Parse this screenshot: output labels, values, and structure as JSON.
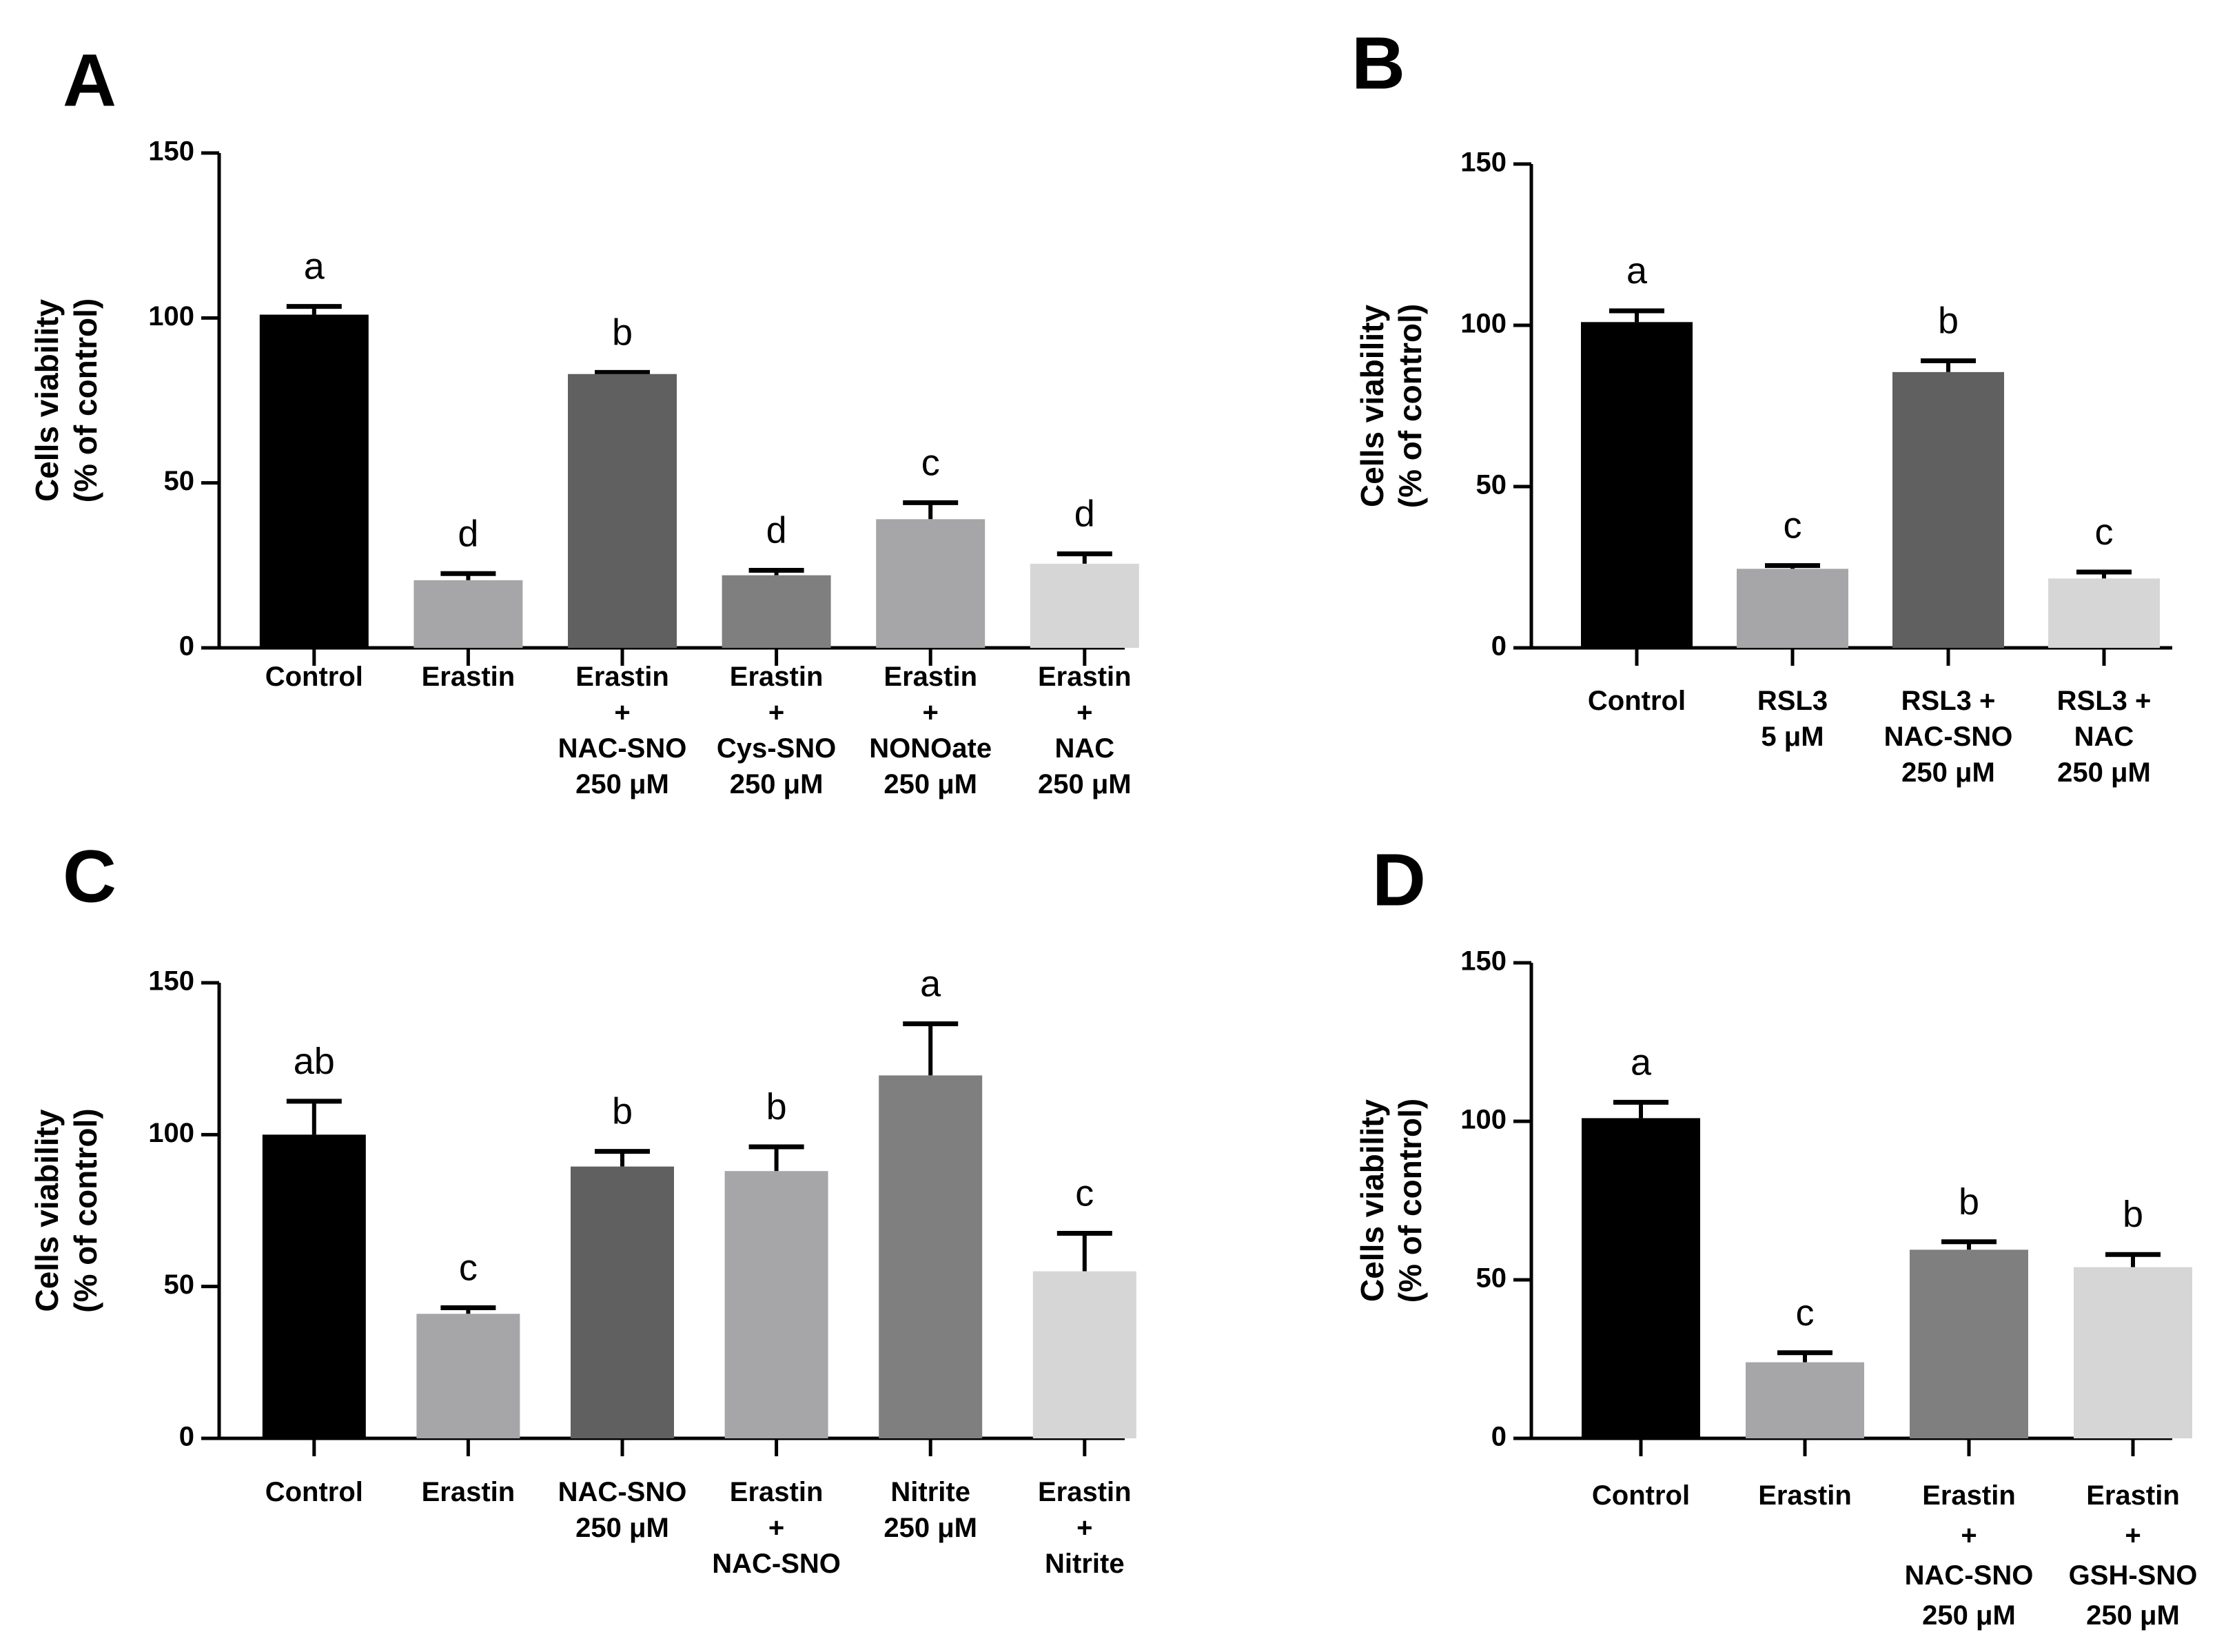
{
  "chart_data": [
    {
      "panel": "A",
      "type": "bar",
      "ylabel": [
        "Cells viability",
        "(% of control)"
      ],
      "ylim": [
        0,
        150
      ],
      "yticks": [
        "0",
        "50",
        "100",
        "150"
      ],
      "categories": [
        [
          "Control"
        ],
        [
          "Erastin"
        ],
        [
          "Erastin",
          "+",
          "NAC-SNO",
          "250 μM"
        ],
        [
          "Erastin",
          "+",
          "Cys-SNO",
          "250 μM"
        ],
        [
          "Erastin",
          "+",
          "NONOate",
          "250 μM"
        ],
        [
          "Erastin",
          "+",
          "NAC",
          "250 μM"
        ]
      ],
      "values": [
        101,
        20.5,
        83,
        22,
        39,
        25.5
      ],
      "errors": [
        2.5,
        2,
        0.5,
        1.5,
        5,
        3
      ],
      "significance": [
        "a",
        "d",
        "b",
        "d",
        "c",
        "d"
      ],
      "colors": [
        "#000000",
        "#a6a6a8",
        "#606060",
        "#7f7f7f",
        "#a6a6a8",
        "#d6d6d6"
      ]
    },
    {
      "panel": "B",
      "type": "bar",
      "ylabel": [
        "Cells viability",
        "(% of control)"
      ],
      "ylim": [
        0,
        150
      ],
      "yticks": [
        "0",
        "50",
        "100",
        "150"
      ],
      "categories": [
        [
          "Control"
        ],
        [
          "RSL3",
          "5 μM"
        ],
        [
          "RSL3 +",
          "NAC-SNO",
          "250 μM"
        ],
        [
          "RSL3 +",
          "NAC",
          "250 μM"
        ]
      ],
      "values": [
        101,
        24.5,
        85.5,
        21.5
      ],
      "errors": [
        3.5,
        1,
        3.5,
        2
      ],
      "significance": [
        "a",
        "c",
        "b",
        "c"
      ],
      "colors": [
        "#000000",
        "#a6a6a8",
        "#606060",
        "#d6d6d6"
      ]
    },
    {
      "panel": "C",
      "type": "bar",
      "ylabel": [
        "Cells viability",
        "(% of control)"
      ],
      "ylim": [
        0,
        150
      ],
      "yticks": [
        "0",
        "50",
        "100",
        "150"
      ],
      "categories": [
        [
          "Control"
        ],
        [
          "Erastin"
        ],
        [
          "NAC-SNO",
          "250 μM"
        ],
        [
          "Erastin",
          "+",
          "NAC-SNO"
        ],
        [
          "Nitrite",
          "250 μM"
        ],
        [
          "Erastin",
          "+",
          "Nitrite"
        ]
      ],
      "values": [
        100,
        41,
        89.5,
        88,
        119.5,
        55
      ],
      "errors": [
        11,
        2,
        5,
        8,
        17,
        12.5
      ],
      "significance": [
        "ab",
        "c",
        "b",
        "b",
        "a",
        "c"
      ],
      "colors": [
        "#000000",
        "#a6a6a8",
        "#606060",
        "#a6a6a8",
        "#7f7f7f",
        "#d6d6d6"
      ]
    },
    {
      "panel": "D",
      "type": "bar",
      "ylabel": [
        "Cells viability",
        "(% of control)"
      ],
      "ylim": [
        0,
        150
      ],
      "yticks": [
        "0",
        "50",
        "100",
        "150"
      ],
      "categories": [
        [
          "Control"
        ],
        [
          "Erastin"
        ],
        [
          "Erastin",
          "+",
          "NAC-SNO",
          "250 μM"
        ],
        [
          "Erastin",
          "+",
          "GSH-SNO",
          "250 μM"
        ]
      ],
      "values": [
        101,
        24,
        59.5,
        54
      ],
      "errors": [
        5,
        3,
        2.5,
        4
      ],
      "significance": [
        "a",
        "c",
        "b",
        "b"
      ],
      "colors": [
        "#000000",
        "#a6a6a8",
        "#7f7f7f",
        "#d6d6d6"
      ]
    }
  ]
}
